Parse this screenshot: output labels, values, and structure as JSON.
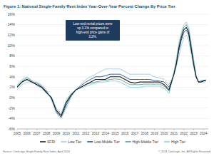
{
  "chart_data": {
    "type": "line",
    "title": "Figure 1: National Single-Family Rent Index Year-Over-Year Percent Change By Price Tier",
    "annotations": [
      "Low-end rental prices were up 3.1% compared to high-end price gains of 3.2%."
    ],
    "source": "Source: CoreLogic Single-Family Rent Index, April 2024",
    "copyright": "© 2024 CoreLogic, Inc. All Rights Reserved.",
    "x": [
      2005,
      2005.5,
      2006,
      2006.5,
      2007,
      2007.5,
      2008,
      2008.5,
      2009,
      2009.5,
      2010,
      2010.5,
      2011,
      2011.5,
      2012,
      2012.5,
      2013,
      2013.5,
      2014,
      2014.5,
      2015,
      2015.5,
      2016,
      2016.5,
      2017,
      2017.5,
      2018,
      2018.5,
      2019,
      2019.5,
      2020,
      2020.5,
      2020.75,
      2021,
      2021.25,
      2021.5,
      2021.75,
      2022,
      2022.25,
      2022.5,
      2022.75,
      2023,
      2023.25,
      2023.5,
      2023.75,
      2024,
      2024.25
    ],
    "series": [
      {
        "name": "SFRI",
        "color": "#1c1c1c",
        "values": [
          2,
          3,
          3.5,
          3,
          2.5,
          2,
          1,
          0,
          -2.5,
          -3.5,
          -1,
          0.5,
          1.5,
          2,
          2.5,
          3,
          3.5,
          3.5,
          3.5,
          4,
          4,
          4,
          3.5,
          3,
          2.8,
          3,
          3,
          3,
          3,
          3,
          2.5,
          1.5,
          3,
          4.5,
          6.5,
          9.5,
          11.5,
          13,
          13.5,
          12.5,
          9.5,
          6.5,
          4,
          3,
          3,
          3.2,
          3.4
        ]
      },
      {
        "name": "Low Tier",
        "color": "#9cc8e8",
        "values": [
          1.5,
          2.5,
          3,
          3,
          3,
          2.5,
          1.5,
          -0.5,
          -3,
          -4,
          -2,
          0,
          1.5,
          2.5,
          3.5,
          4,
          4.5,
          5,
          5.5,
          5.5,
          5.5,
          5.5,
          5,
          4.5,
          4.5,
          4.5,
          4.5,
          4.5,
          4,
          3.8,
          3.5,
          2.5,
          3.5,
          4.5,
          6,
          8,
          10,
          11.5,
          12,
          11,
          8.5,
          6,
          4,
          3.2,
          3,
          3,
          3.1
        ]
      },
      {
        "name": "Low-Middle Tier",
        "color": "#1f4e99",
        "values": [
          2,
          3,
          3.5,
          3,
          2.8,
          2.2,
          1.2,
          -0.2,
          -2.8,
          -3.8,
          -1.5,
          0.3,
          1.5,
          2.3,
          3,
          3.5,
          4,
          4,
          4.2,
          4.5,
          4.5,
          4.5,
          4,
          3.5,
          3.5,
          3.5,
          3.5,
          3.5,
          3.3,
          3.2,
          3,
          2,
          3.2,
          4.5,
          6.5,
          9,
          11,
          12.5,
          13,
          12,
          9,
          6.2,
          4,
          3,
          3,
          3.2,
          3.3
        ]
      },
      {
        "name": "High-Middle Tier",
        "color": "#5b9a8b",
        "values": [
          2.2,
          3.2,
          3.8,
          3.2,
          2.5,
          2,
          1,
          0,
          -2.3,
          -3.3,
          -0.8,
          0.6,
          1.5,
          2,
          2.5,
          2.8,
          3,
          3.2,
          3.3,
          3.5,
          3.6,
          3.5,
          3,
          2.5,
          2.5,
          2.5,
          2.6,
          2.6,
          2.6,
          2.6,
          2.2,
          1.2,
          3,
          4.8,
          7,
          10,
          12,
          13.5,
          14,
          13,
          10,
          7,
          4.2,
          3,
          3.2,
          3.3,
          3.4
        ]
      },
      {
        "name": "High Tier",
        "color": "#7fd0df",
        "values": [
          2.5,
          3.5,
          4,
          3.3,
          2.3,
          1.8,
          0.8,
          0.2,
          -2,
          -3,
          -0.5,
          0.8,
          1.5,
          1.8,
          2.2,
          2.5,
          2.8,
          3,
          3,
          3.2,
          3.2,
          3,
          2.5,
          2,
          2,
          2,
          2.2,
          2.2,
          2.2,
          2.2,
          1.8,
          0.8,
          2.8,
          5,
          7.5,
          10.5,
          12.5,
          14,
          14.5,
          13.5,
          10.5,
          7.5,
          4.5,
          3,
          3.3,
          3.4,
          3.2
        ]
      }
    ],
    "xlim": [
      2005,
      2024.5
    ],
    "xticks": [
      2005,
      2006,
      2007,
      2008,
      2009,
      2010,
      2011,
      2012,
      2013,
      2014,
      2015,
      2016,
      2017,
      2018,
      2019,
      2020,
      2021,
      2022,
      2023,
      2024
    ],
    "ylim": [
      -6,
      16
    ],
    "yticks": [
      {
        "value": -6,
        "label": "-6%"
      },
      {
        "value": -4,
        "label": "-4%"
      },
      {
        "value": -2,
        "label": "-2%"
      },
      {
        "value": 0,
        "label": "0%"
      },
      {
        "value": 2,
        "label": "2%"
      },
      {
        "value": 4,
        "label": "4%"
      },
      {
        "value": 6,
        "label": "6%"
      },
      {
        "value": 8,
        "label": "8%"
      },
      {
        "value": 10,
        "label": "10%"
      },
      {
        "value": 12,
        "label": "12%"
      },
      {
        "value": 14,
        "label": "14%"
      },
      {
        "value": 16,
        "label": "16%"
      }
    ],
    "grid": true,
    "legend": "bottom"
  }
}
